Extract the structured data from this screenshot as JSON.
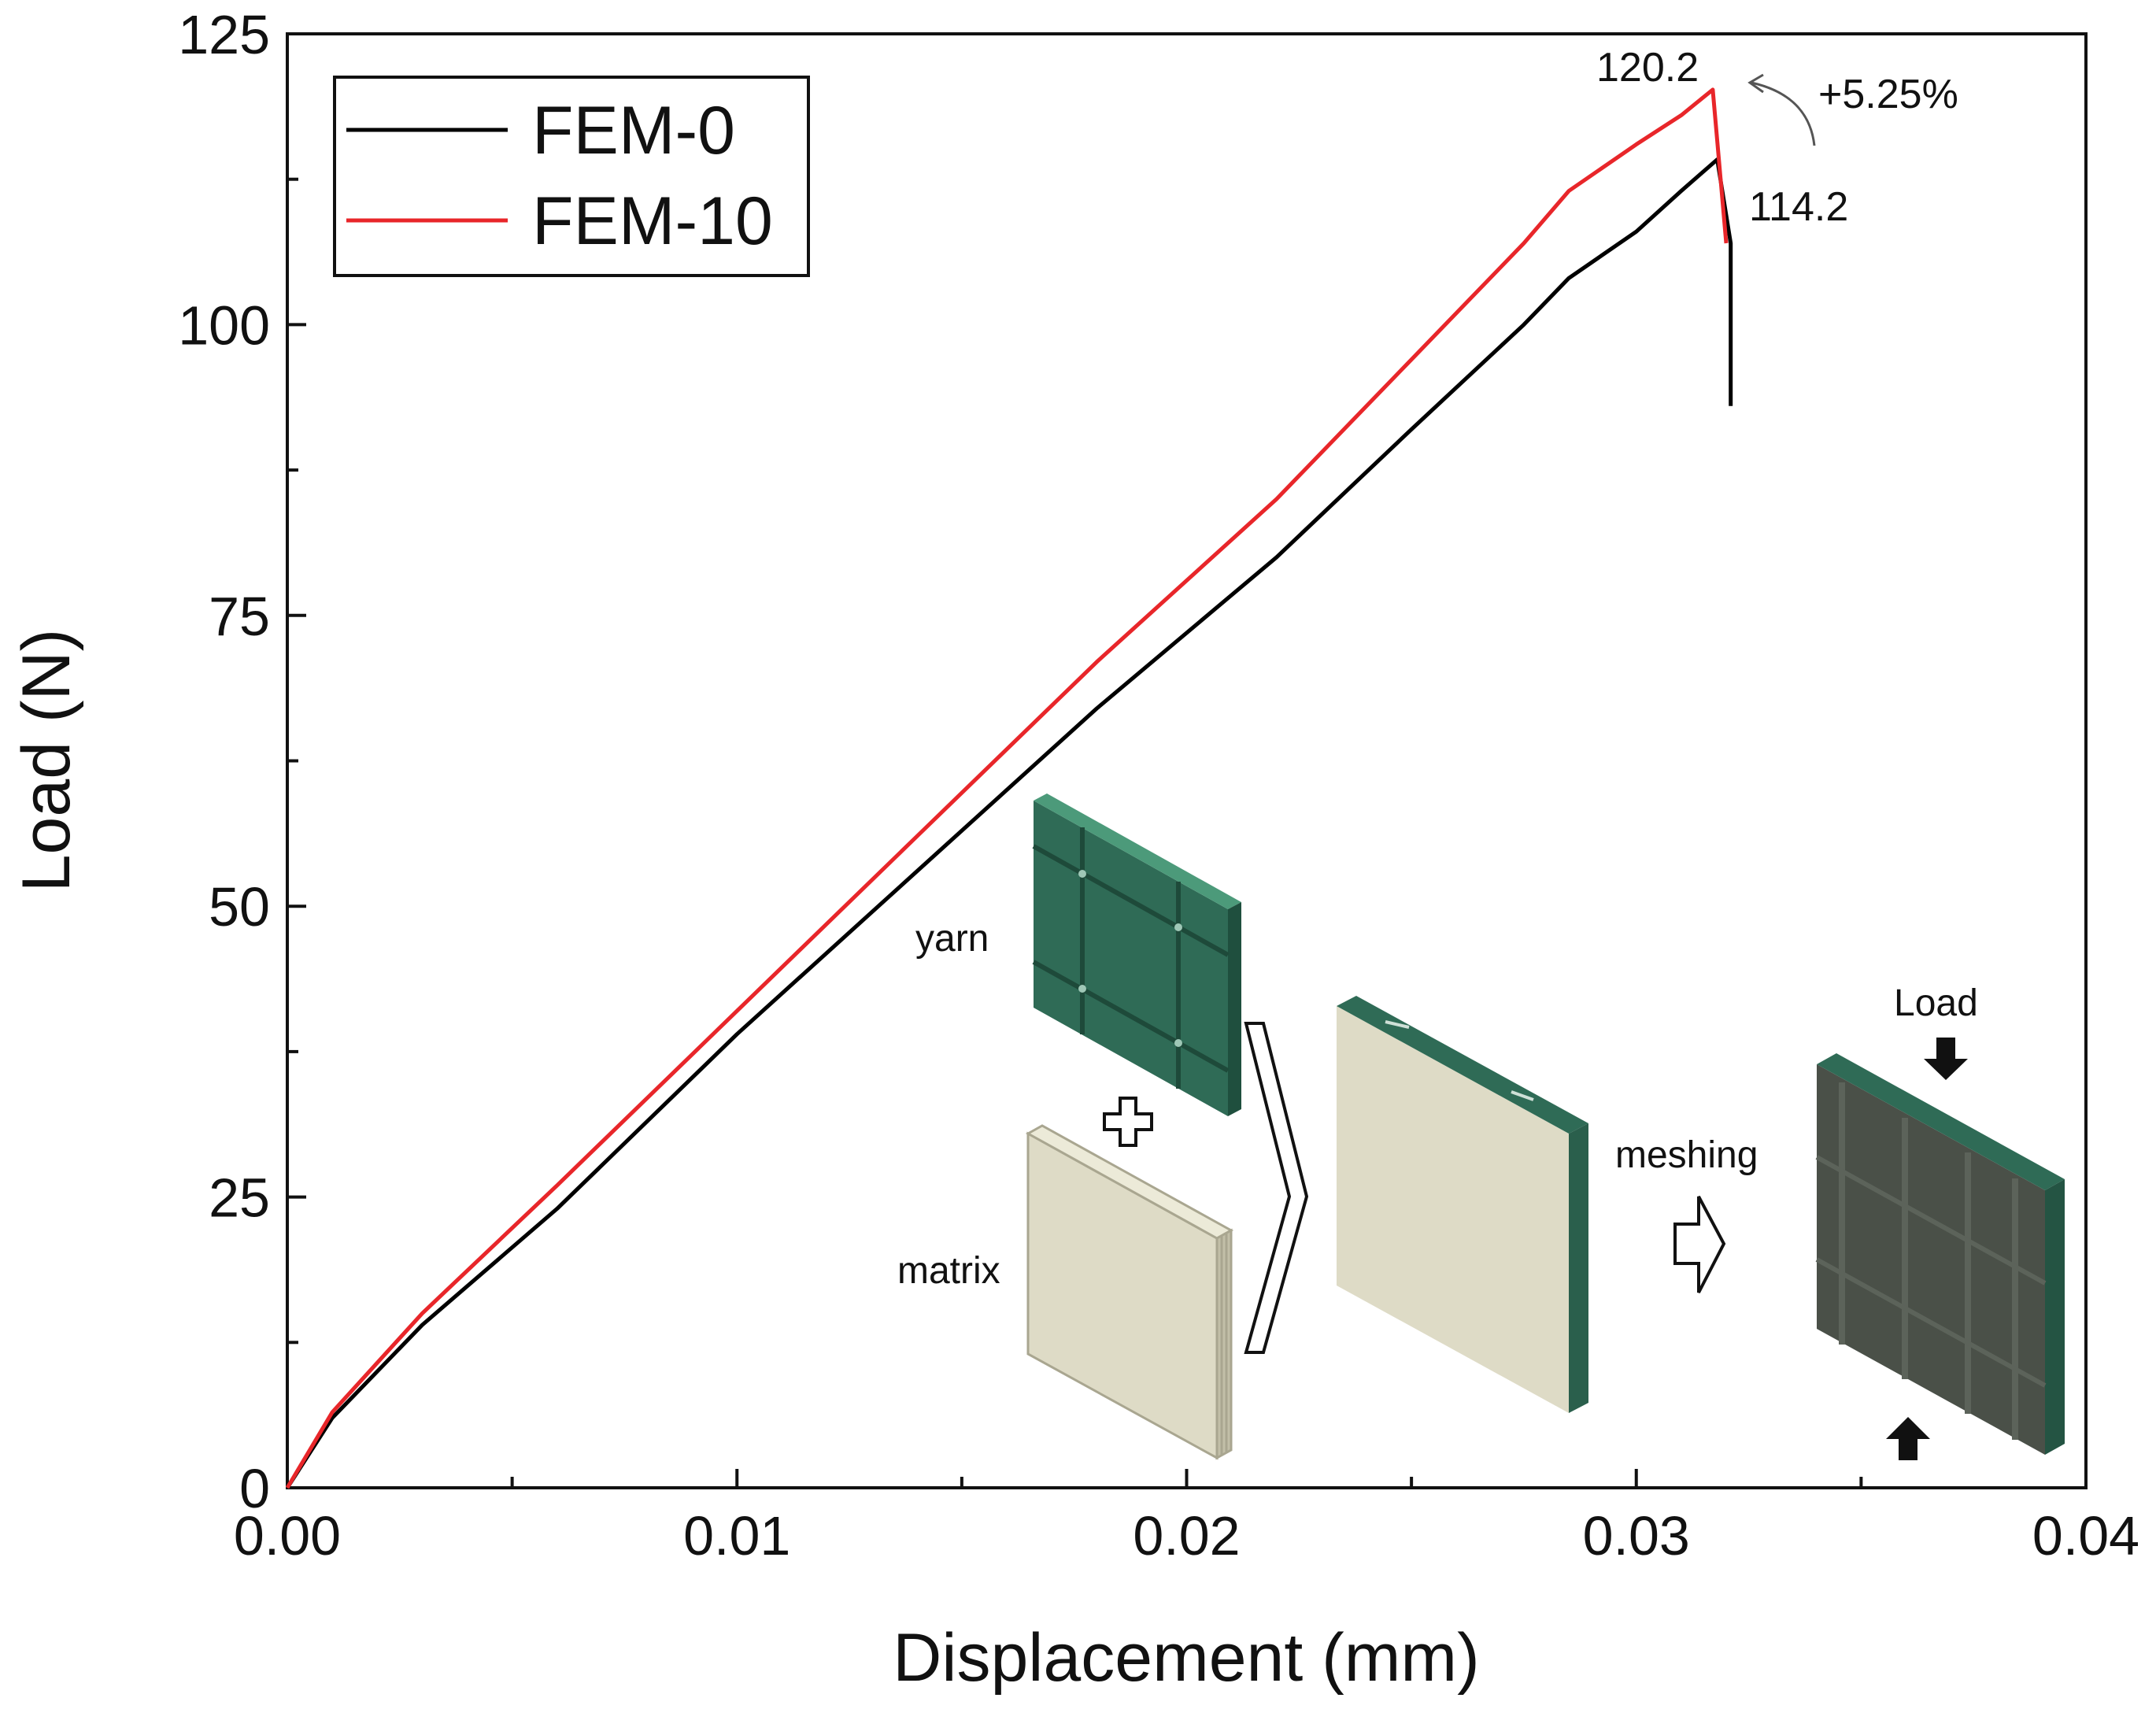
{
  "chart_data": {
    "type": "line",
    "xlabel": "Displacement (mm)",
    "ylabel": "Load (N)",
    "xlim": [
      0,
      0.04
    ],
    "ylim": [
      0,
      125
    ],
    "x_ticks": [
      "0.00",
      "0.01",
      "0.02",
      "0.03",
      "0.04"
    ],
    "y_ticks": [
      "0",
      "25",
      "50",
      "75",
      "100",
      "125"
    ],
    "x_tick_values": [
      0,
      0.01,
      0.02,
      0.03,
      0.04
    ],
    "y_tick_values": [
      0,
      25,
      50,
      75,
      100,
      125
    ],
    "grid": false,
    "legend_position": "top-left",
    "series": [
      {
        "name": "FEM-0",
        "color": "#000000",
        "x": [
          0,
          0.001,
          0.003,
          0.006,
          0.01,
          0.014,
          0.018,
          0.022,
          0.025,
          0.0275,
          0.0285,
          0.03,
          0.031,
          0.0318,
          0.0321,
          0.0321
        ],
        "y": [
          0,
          6,
          14,
          24,
          39,
          53,
          67,
          80,
          91,
          100,
          104,
          108,
          111.5,
          114.2,
          107,
          93
        ]
      },
      {
        "name": "FEM-10",
        "color": "#e8262a",
        "x": [
          0,
          0.001,
          0.003,
          0.006,
          0.01,
          0.014,
          0.018,
          0.022,
          0.025,
          0.0275,
          0.0285,
          0.03,
          0.031,
          0.0317,
          0.032
        ],
        "y": [
          0,
          6.5,
          15,
          26,
          41,
          56,
          71,
          85,
          97,
          107,
          111.5,
          115.5,
          118,
          120.2,
          107
        ]
      }
    ],
    "annotations": {
      "peak_fem10": "120.2",
      "peak_fem0": "114.2",
      "increase": "+5.25%"
    }
  },
  "inset": {
    "yarn_label": "yarn",
    "matrix_label": "matrix",
    "meshing_label": "meshing",
    "load_label": "Load",
    "colors": {
      "yarn": "#2f6b56",
      "yarn_light": "#3d8a6c",
      "matrix": "#dedbc6",
      "matrix_edge": "#c2bfa8",
      "mesh": "#4a5048"
    }
  }
}
